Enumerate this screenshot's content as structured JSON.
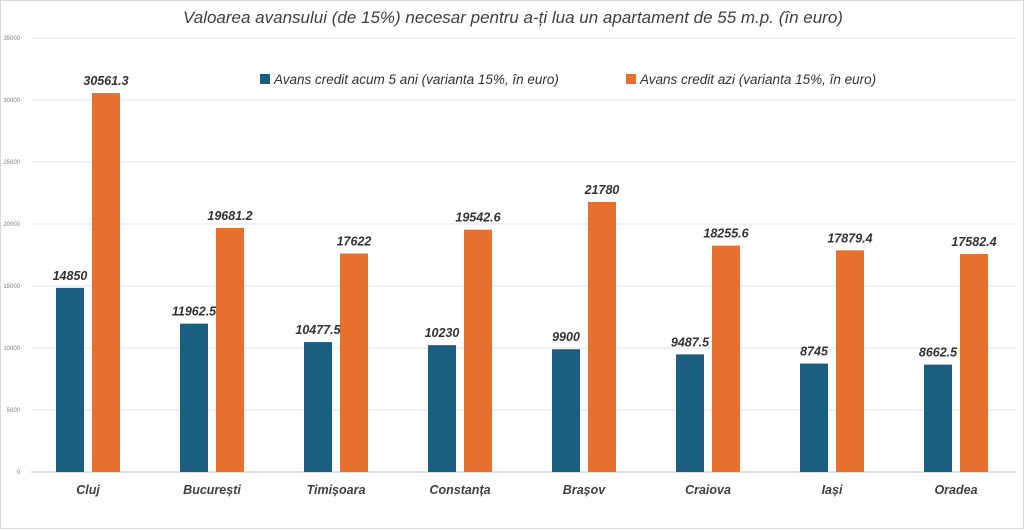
{
  "chart_data": {
    "type": "bar",
    "title": "Valoarea avansului (de 15%) necesar pentru a-ți lua un apartament de 55 m.p. (în euro)",
    "xlabel": "",
    "ylabel": "",
    "ylim": [
      0,
      35000
    ],
    "yticks": [
      0,
      5000,
      10000,
      15000,
      20000,
      25000,
      30000,
      35000
    ],
    "grid": true,
    "legend_position": "top",
    "categories": [
      "Cluj",
      "București",
      "Timișoara",
      "Constanța",
      "Brașov",
      "Craiova",
      "Iași",
      "Oradea"
    ],
    "series": [
      {
        "name": "Avans credit acum 5 ani (varianta 15%, în euro)",
        "color": "#1a5f80",
        "values": [
          14850,
          11962.5,
          10477.5,
          10230,
          9900,
          9487.5,
          8745,
          8662.5
        ],
        "labels": [
          "14850",
          "11962.5",
          "10477.5",
          "10230",
          "9900",
          "9487.5",
          "8745",
          "8662.5"
        ]
      },
      {
        "name": "Avans credit azi  (varianta 15%, în euro)",
        "color": "#e8702f",
        "values": [
          30561.3,
          19681.2,
          17622,
          19542.6,
          21780,
          18255.6,
          17879.4,
          17582.4
        ],
        "labels": [
          "30561.3",
          "19681.2",
          "17622",
          "19542.6",
          "21780",
          "18255.6",
          "17879.4",
          "17582.4"
        ]
      }
    ]
  }
}
